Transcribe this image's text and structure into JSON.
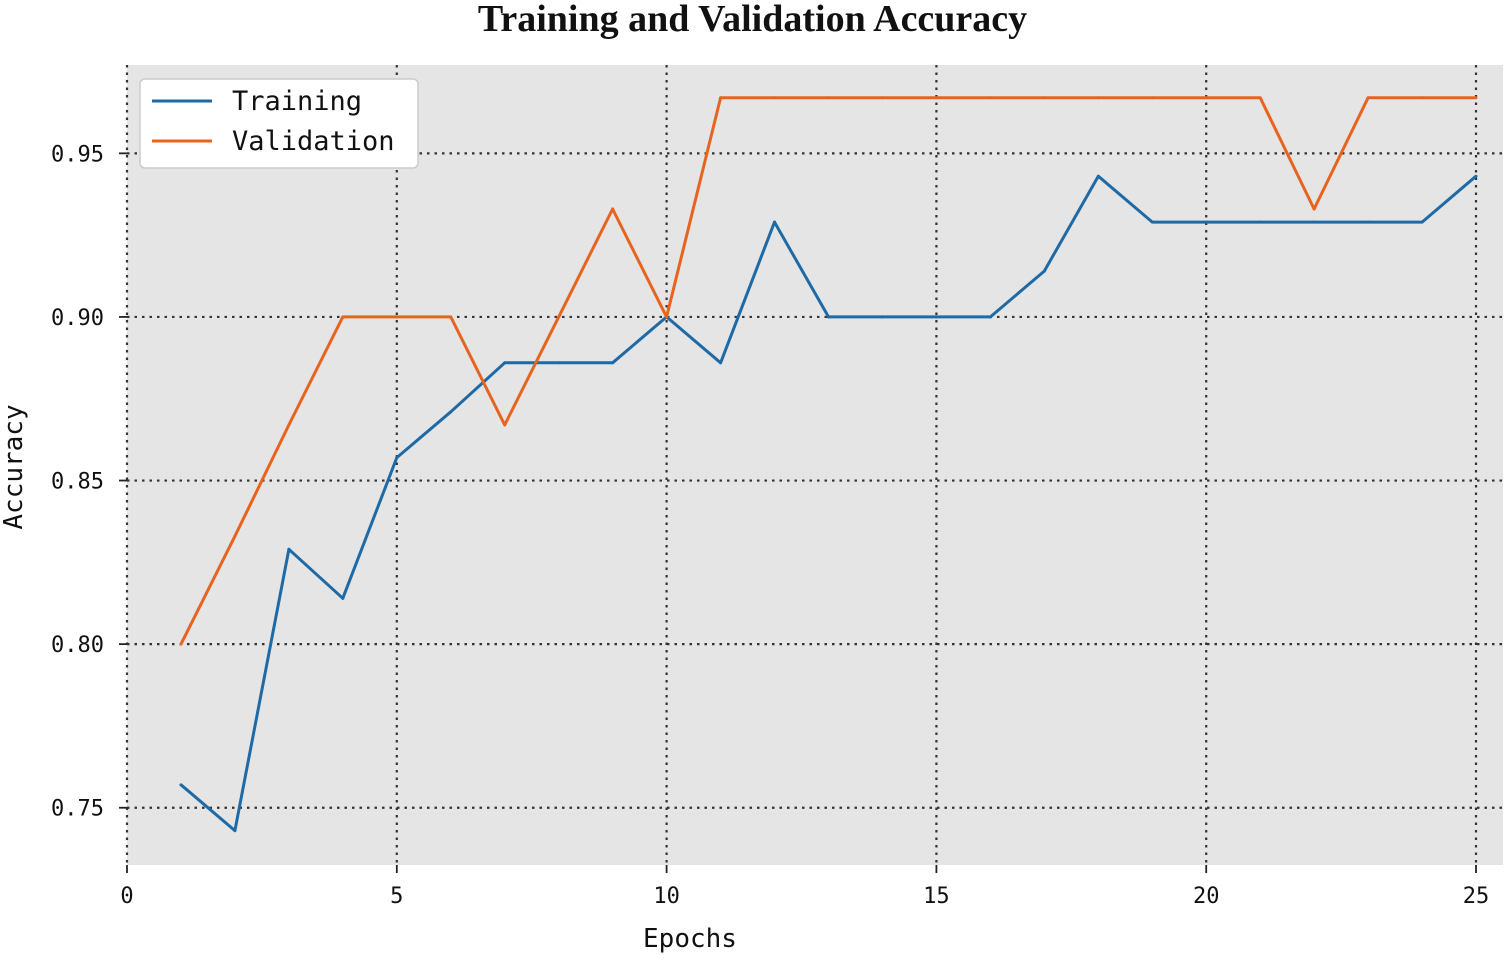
{
  "chart_data": {
    "type": "line",
    "title": "Training and Validation Accuracy",
    "xlabel": "Epochs",
    "ylabel": "Accuracy",
    "xlim": [
      0,
      25.5
    ],
    "ylim": [
      0.7325,
      0.977
    ],
    "xticks": [
      0,
      5,
      10,
      15,
      20,
      25
    ],
    "xtick_labels": [
      "0",
      "5",
      "10",
      "15",
      "20",
      "25"
    ],
    "yticks": [
      0.75,
      0.8,
      0.85,
      0.9,
      0.95
    ],
    "ytick_labels": [
      "0.75",
      "0.80",
      "0.85",
      "0.90",
      "0.95"
    ],
    "grid": true,
    "legend_position": "top-left",
    "background": "#e5e5e5",
    "x": [
      1,
      2,
      3,
      4,
      5,
      6,
      7,
      8,
      9,
      10,
      11,
      12,
      13,
      14,
      15,
      16,
      17,
      18,
      19,
      20,
      21,
      22,
      23,
      24,
      25
    ],
    "series": [
      {
        "name": "Training",
        "color": "#1f6aa5",
        "values": [
          0.757,
          0.743,
          0.829,
          0.814,
          0.857,
          0.871,
          0.886,
          0.886,
          0.886,
          0.9,
          0.886,
          0.929,
          0.9,
          0.9,
          0.9,
          0.9,
          0.914,
          0.943,
          0.929,
          0.929,
          0.929,
          0.929,
          0.929,
          0.929,
          0.943
        ]
      },
      {
        "name": "Validation",
        "color": "#e8641e",
        "values": [
          0.8,
          0.833,
          0.867,
          0.9,
          0.9,
          0.9,
          0.867,
          0.9,
          0.933,
          0.9,
          0.967,
          0.967,
          0.967,
          0.967,
          0.967,
          0.967,
          0.967,
          0.967,
          0.967,
          0.967,
          0.967,
          0.933,
          0.967,
          0.967,
          0.967
        ]
      }
    ]
  }
}
